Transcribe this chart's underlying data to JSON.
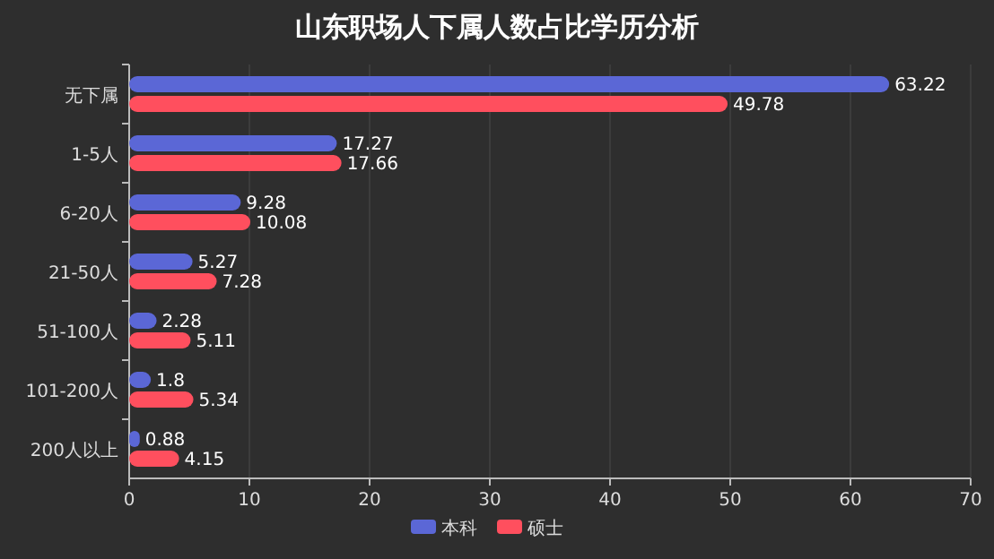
{
  "chart_data": {
    "type": "bar",
    "orientation": "horizontal",
    "title": "山东职场人下属人数占比学历分析",
    "categories": [
      "无下属",
      "1-5人",
      "6-20人",
      "21-50人",
      "51-100人",
      "101-200人",
      "200人以上"
    ],
    "series": [
      {
        "name": "本科",
        "color": "#5b67d6",
        "values": [
          63.22,
          17.27,
          9.28,
          5.27,
          2.28,
          1.8,
          0.88
        ]
      },
      {
        "name": "硕士",
        "color": "#ff4f5e",
        "values": [
          49.78,
          17.66,
          10.08,
          7.28,
          5.11,
          5.34,
          4.15
        ]
      }
    ],
    "xlim": [
      0,
      70
    ],
    "xticks": [
      0,
      10,
      20,
      30,
      40,
      50,
      60,
      70
    ],
    "grid": "x",
    "legend": "bottom",
    "data_labels": true
  }
}
